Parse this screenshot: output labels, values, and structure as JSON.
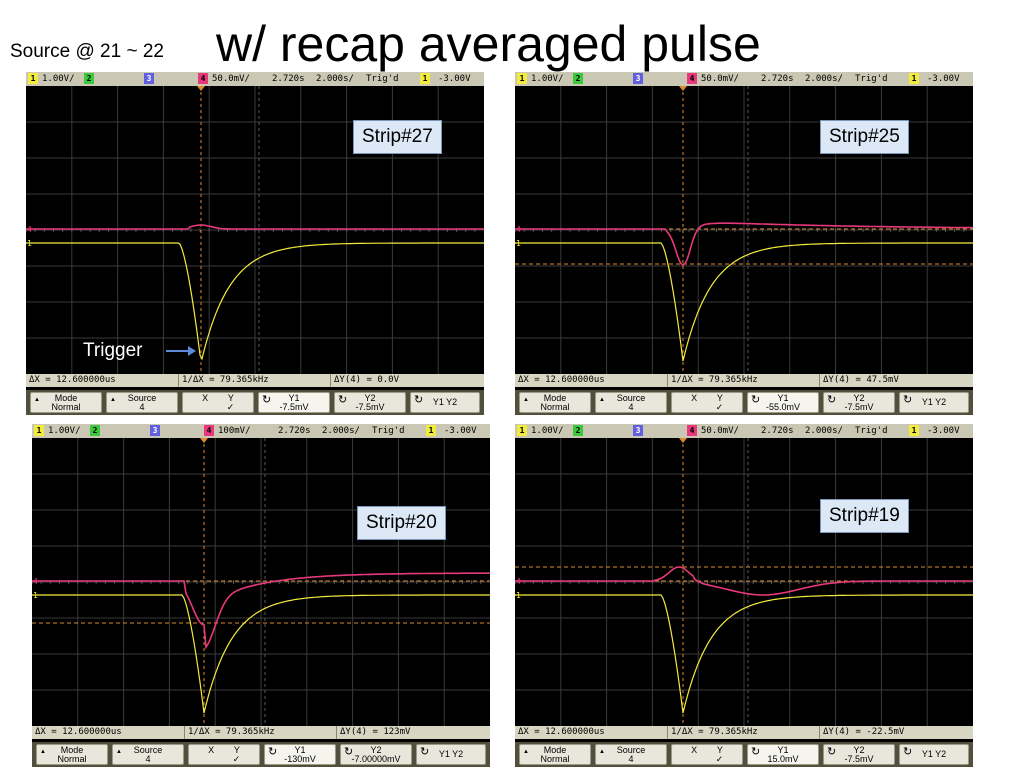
{
  "title": "w/ recap averaged pulse",
  "subtitle": "Source @ 21 ~ 22",
  "colors": {
    "ch1": "#f2ec3c",
    "ch4": "#e8387c",
    "cursor": "#e08a2c",
    "grid": "#3a3a3a",
    "label_bg": "#dce8f5"
  },
  "panels": [
    {
      "strip_label": "Strip#27",
      "header": {
        "ch1": "1",
        "ch1_scale": "1.00V/",
        "ch2": "2",
        "ch3": "3",
        "ch4": "4",
        "timebase": "50.0mV/",
        "delay": "2.720s",
        "time_div": "2.000s/",
        "trig_state": "Trig'd",
        "trig_ch": "1",
        "trig_level": "-3.00V"
      },
      "meas": {
        "dx": "ΔX = 12.600000us",
        "inv_dx": "1/ΔX = 79.365kHz",
        "dy": "ΔY(4) = 0.0V"
      },
      "softkeys": {
        "mode_label": "Mode",
        "mode_value": "Normal",
        "source_label": "Source",
        "source_value": "4",
        "x": "X",
        "y": "Y",
        "check": "✓",
        "y1_label": "Y1",
        "y1_value": "-7.5mV",
        "y2_label": "Y2",
        "y2_value": "-7.5mV",
        "y1y2": "Y1 Y2"
      },
      "annotation": "Trigger"
    },
    {
      "strip_label": "Strip#25",
      "header": {
        "ch1": "1",
        "ch1_scale": "1.00V/",
        "ch2": "2",
        "ch3": "3",
        "ch4": "4",
        "timebase": "50.0mV/",
        "delay": "2.720s",
        "time_div": "2.000s/",
        "trig_state": "Trig'd",
        "trig_ch": "1",
        "trig_level": "-3.00V"
      },
      "meas": {
        "dx": "ΔX = 12.600000us",
        "inv_dx": "1/ΔX = 79.365kHz",
        "dy": "ΔY(4) = 47.5mV"
      },
      "softkeys": {
        "mode_label": "Mode",
        "mode_value": "Normal",
        "source_label": "Source",
        "source_value": "4",
        "x": "X",
        "y": "Y",
        "check": "✓",
        "y1_label": "Y1",
        "y1_value": "-55.0mV",
        "y2_label": "Y2",
        "y2_value": "-7.5mV",
        "y1y2": "Y1 Y2"
      }
    },
    {
      "strip_label": "Strip#20",
      "header": {
        "ch1": "1",
        "ch1_scale": "1.00V/",
        "ch2": "2",
        "ch3": "3",
        "ch4": "4",
        "timebase": "100mV/",
        "delay": "2.720s",
        "time_div": "2.000s/",
        "trig_state": "Trig'd",
        "trig_ch": "1",
        "trig_level": "-3.00V"
      },
      "meas": {
        "dx": "ΔX = 12.600000us",
        "inv_dx": "1/ΔX = 79.365kHz",
        "dy": "ΔY(4) = 123mV"
      },
      "softkeys": {
        "mode_label": "Mode",
        "mode_value": "Normal",
        "source_label": "Source",
        "source_value": "4",
        "x": "X",
        "y": "Y",
        "check": "✓",
        "y1_label": "Y1",
        "y1_value": "-130mV",
        "y2_label": "Y2",
        "y2_value": "-7.00000mV",
        "y1y2": "Y1 Y2"
      }
    },
    {
      "strip_label": "Strip#19",
      "header": {
        "ch1": "1",
        "ch1_scale": "1.00V/",
        "ch2": "2",
        "ch3": "3",
        "ch4": "4",
        "timebase": "50.0mV/",
        "delay": "2.720s",
        "time_div": "2.000s/",
        "trig_state": "Trig'd",
        "trig_ch": "1",
        "trig_level": "-3.00V"
      },
      "meas": {
        "dx": "ΔX = 12.600000us",
        "inv_dx": "1/ΔX = 79.365kHz",
        "dy": "ΔY(4) = -22.5mV"
      },
      "softkeys": {
        "mode_label": "Mode",
        "mode_value": "Normal",
        "source_label": "Source",
        "source_value": "4",
        "x": "X",
        "y": "Y",
        "check": "✓",
        "y1_label": "Y1",
        "y1_value": "15.0mV",
        "y2_label": "Y2",
        "y2_value": "-7.5mV",
        "y1y2": "Y1 Y2"
      }
    }
  ]
}
